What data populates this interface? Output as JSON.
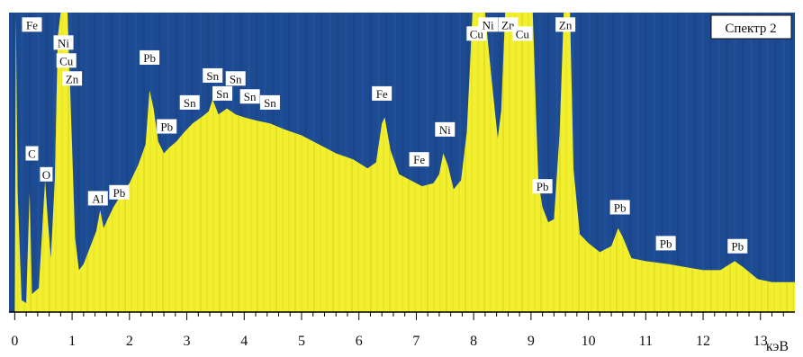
{
  "chart_data": {
    "type": "area",
    "title": "Спектр 2",
    "xlabel": "кэВ",
    "ylabel": "",
    "xlim": [
      -0.1,
      13.6
    ],
    "ylim": [
      0,
      100
    ],
    "x_ticks": [
      0,
      1,
      2,
      3,
      4,
      5,
      6,
      7,
      8,
      9,
      10,
      11,
      12,
      13
    ],
    "grid": false,
    "colors": {
      "background": "#1d4b92",
      "fill": "#f2ef2e",
      "axis": "#000000"
    },
    "series": [
      {
        "values": [
          [
            0,
            0
          ],
          [
            0.02,
            99
          ],
          [
            0.05,
            40
          ],
          [
            0.12,
            4
          ],
          [
            0.2,
            3
          ],
          [
            0.26,
            40
          ],
          [
            0.3,
            6
          ],
          [
            0.42,
            8
          ],
          [
            0.53,
            44
          ],
          [
            0.58,
            30
          ],
          [
            0.63,
            18
          ],
          [
            0.7,
            45
          ],
          [
            0.75,
            92
          ],
          [
            0.8,
            100
          ],
          [
            0.92,
            100
          ],
          [
            1.0,
            55
          ],
          [
            1.05,
            25
          ],
          [
            1.12,
            14
          ],
          [
            1.2,
            16
          ],
          [
            1.3,
            21
          ],
          [
            1.42,
            27
          ],
          [
            1.49,
            34
          ],
          [
            1.55,
            28
          ],
          [
            1.62,
            31
          ],
          [
            1.72,
            35
          ],
          [
            1.85,
            39
          ],
          [
            2.0,
            43
          ],
          [
            2.15,
            49
          ],
          [
            2.28,
            56
          ],
          [
            2.35,
            74
          ],
          [
            2.42,
            68
          ],
          [
            2.5,
            57
          ],
          [
            2.6,
            53
          ],
          [
            2.7,
            55
          ],
          [
            2.82,
            57
          ],
          [
            2.95,
            60
          ],
          [
            3.1,
            63
          ],
          [
            3.25,
            65
          ],
          [
            3.38,
            67
          ],
          [
            3.45,
            71
          ],
          [
            3.55,
            66
          ],
          [
            3.7,
            68
          ],
          [
            3.85,
            66
          ],
          [
            4.0,
            65
          ],
          [
            4.2,
            64
          ],
          [
            4.45,
            63
          ],
          [
            4.7,
            61
          ],
          [
            5.0,
            59
          ],
          [
            5.3,
            56
          ],
          [
            5.6,
            53
          ],
          [
            5.9,
            51
          ],
          [
            6.15,
            48
          ],
          [
            6.3,
            50
          ],
          [
            6.4,
            63
          ],
          [
            6.45,
            65
          ],
          [
            6.55,
            54
          ],
          [
            6.7,
            46
          ],
          [
            6.9,
            44
          ],
          [
            7.1,
            42
          ],
          [
            7.3,
            43
          ],
          [
            7.4,
            46
          ],
          [
            7.47,
            53
          ],
          [
            7.55,
            49
          ],
          [
            7.65,
            41
          ],
          [
            7.78,
            44
          ],
          [
            7.88,
            60
          ],
          [
            7.98,
            100
          ],
          [
            8.2,
            100
          ],
          [
            8.3,
            80
          ],
          [
            8.42,
            58
          ],
          [
            8.48,
            67
          ],
          [
            8.55,
            100
          ],
          [
            9.03,
            100
          ],
          [
            9.08,
            70
          ],
          [
            9.13,
            43
          ],
          [
            9.2,
            35
          ],
          [
            9.3,
            30
          ],
          [
            9.4,
            31
          ],
          [
            9.5,
            60
          ],
          [
            9.57,
            100
          ],
          [
            9.68,
            100
          ],
          [
            9.74,
            48
          ],
          [
            9.85,
            26
          ],
          [
            10.0,
            23
          ],
          [
            10.2,
            20
          ],
          [
            10.4,
            22
          ],
          [
            10.52,
            28
          ],
          [
            10.6,
            25
          ],
          [
            10.75,
            18
          ],
          [
            11.0,
            17
          ],
          [
            11.4,
            16
          ],
          [
            11.7,
            15
          ],
          [
            12.0,
            14
          ],
          [
            12.3,
            14
          ],
          [
            12.55,
            17
          ],
          [
            12.7,
            15
          ],
          [
            12.95,
            11
          ],
          [
            13.2,
            10
          ],
          [
            13.6,
            10
          ]
        ]
      }
    ],
    "annotations": [
      {
        "text": "Fe",
        "x": 0.3,
        "y": 96
      },
      {
        "text": "Ni",
        "x": 0.85,
        "y": 90
      },
      {
        "text": "Cu",
        "x": 0.9,
        "y": 84
      },
      {
        "text": "Zn",
        "x": 1.0,
        "y": 78
      },
      {
        "text": "C",
        "x": 0.3,
        "y": 53
      },
      {
        "text": "O",
        "x": 0.55,
        "y": 46
      },
      {
        "text": "Al",
        "x": 1.45,
        "y": 38
      },
      {
        "text": "Pb",
        "x": 1.82,
        "y": 40
      },
      {
        "text": "Pb",
        "x": 2.35,
        "y": 85
      },
      {
        "text": "Pb",
        "x": 2.65,
        "y": 62
      },
      {
        "text": "Sn",
        "x": 3.05,
        "y": 70
      },
      {
        "text": "Sn",
        "x": 3.45,
        "y": 79
      },
      {
        "text": "Sn",
        "x": 3.62,
        "y": 73
      },
      {
        "text": "Sn",
        "x": 3.85,
        "y": 78
      },
      {
        "text": "Sn",
        "x": 4.1,
        "y": 72
      },
      {
        "text": "Sn",
        "x": 4.45,
        "y": 70
      },
      {
        "text": "Fe",
        "x": 6.4,
        "y": 73
      },
      {
        "text": "Fe",
        "x": 7.05,
        "y": 51
      },
      {
        "text": "Ni",
        "x": 7.5,
        "y": 61
      },
      {
        "text": "Cu",
        "x": 8.05,
        "y": 93
      },
      {
        "text": "Ni",
        "x": 8.25,
        "y": 96
      },
      {
        "text": "Zn",
        "x": 8.6,
        "y": 96
      },
      {
        "text": "Cu",
        "x": 8.85,
        "y": 93
      },
      {
        "text": "Zn",
        "x": 9.6,
        "y": 96
      },
      {
        "text": "Pb",
        "x": 9.2,
        "y": 42
      },
      {
        "text": "Pb",
        "x": 10.55,
        "y": 35
      },
      {
        "text": "Pb",
        "x": 11.35,
        "y": 23
      },
      {
        "text": "Pb",
        "x": 12.6,
        "y": 22
      }
    ]
  }
}
